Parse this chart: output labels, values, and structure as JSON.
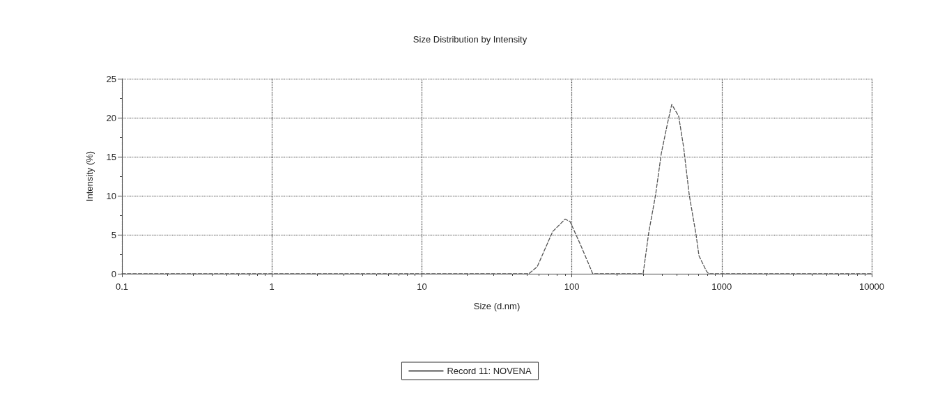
{
  "chart_data": {
    "type": "line",
    "title": "Size Distribution by Intensity",
    "xlabel": "Size (d.nm)",
    "ylabel": "Intensity (%)",
    "log": "x",
    "xlim": [
      0.1,
      10000
    ],
    "xticks": [
      0.1,
      1,
      10,
      100,
      1000,
      10000
    ],
    "ylim": [
      0,
      25
    ],
    "yticks": [
      0,
      5,
      10,
      15,
      20,
      25
    ],
    "grid": true,
    "legend": "bottom",
    "marker": "none",
    "line_style": "dashed",
    "series": [
      {
        "name": "Record 11: NOVENA",
        "color": "#555555",
        "x": [
          0.1,
          1,
          10,
          51.7,
          58.8,
          74.5,
          90.2,
          97.3,
          115,
          138,
          200,
          299,
          326,
          362,
          395,
          435,
          464,
          516,
          556,
          607,
          674,
          705,
          792,
          820,
          10000
        ],
        "values": [
          0,
          0,
          0,
          0,
          0.9,
          5.4,
          7.0,
          6.7,
          3.6,
          0,
          0,
          0,
          5.3,
          10.1,
          15.4,
          19.3,
          21.7,
          20.2,
          16.3,
          10.1,
          5.0,
          2.3,
          0.3,
          0,
          0
        ]
      }
    ]
  }
}
